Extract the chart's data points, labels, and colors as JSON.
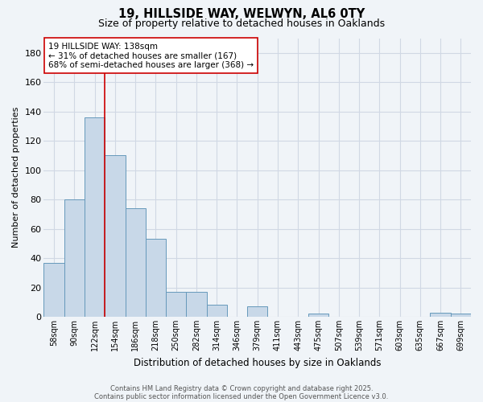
{
  "title1": "19, HILLSIDE WAY, WELWYN, AL6 0TY",
  "title2": "Size of property relative to detached houses in Oaklands",
  "xlabel": "Distribution of detached houses by size in Oaklands",
  "ylabel": "Number of detached properties",
  "bar_color": "#c8d8e8",
  "bar_edge_color": "#6699bb",
  "background_color": "#f0f4f8",
  "grid_color": "#d0d8e4",
  "marker_line_color": "#cc0000",
  "annotation_title": "19 HILLSIDE WAY: 138sqm",
  "annotation_line1": "← 31% of detached houses are smaller (167)",
  "annotation_line2": "68% of semi-detached houses are larger (368) →",
  "annotation_box_color": "#ffffff",
  "annotation_box_edge": "#cc0000",
  "categories": [
    "58sqm",
    "90sqm",
    "122sqm",
    "154sqm",
    "186sqm",
    "218sqm",
    "250sqm",
    "282sqm",
    "314sqm",
    "346sqm",
    "379sqm",
    "411sqm",
    "443sqm",
    "475sqm",
    "507sqm",
    "539sqm",
    "571sqm",
    "603sqm",
    "635sqm",
    "667sqm",
    "699sqm"
  ],
  "values": [
    37,
    80,
    136,
    110,
    74,
    53,
    17,
    17,
    8,
    0,
    7,
    0,
    0,
    2,
    0,
    0,
    0,
    0,
    0,
    3,
    2
  ],
  "ylim": [
    0,
    190
  ],
  "yticks": [
    0,
    20,
    40,
    60,
    80,
    100,
    120,
    140,
    160,
    180
  ],
  "footer1": "Contains HM Land Registry data © Crown copyright and database right 2025.",
  "footer2": "Contains public sector information licensed under the Open Government Licence v3.0.",
  "marker_bin_index": 2
}
